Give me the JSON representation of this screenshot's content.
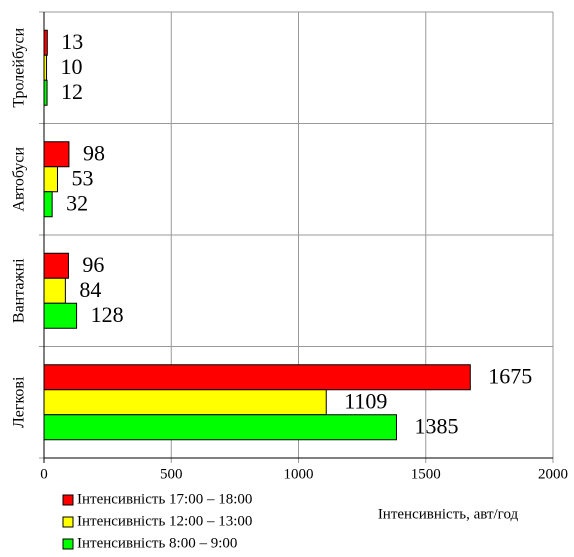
{
  "chart_data": {
    "type": "barh",
    "categories": [
      "Тролейбуси",
      "Автобуси",
      "Вантажні",
      "Легкові"
    ],
    "series": [
      {
        "name": "Інтенсивність 17:00 – 18:00",
        "color": "#ff0000",
        "values": [
          13,
          98,
          96,
          1675
        ]
      },
      {
        "name": "Інтенсивність 12:00 – 13:00",
        "color": "#ffff00",
        "values": [
          10,
          53,
          84,
          1109
        ]
      },
      {
        "name": "Інтенсивність 8:00 – 9:00",
        "color": "#00ff00",
        "values": [
          12,
          32,
          128,
          1385
        ]
      }
    ],
    "xlabel": "Інтенсивність, авт/год",
    "xlim": [
      0,
      2000
    ],
    "xticks": [
      0,
      500,
      1000,
      1500,
      2000
    ],
    "grid": true
  }
}
